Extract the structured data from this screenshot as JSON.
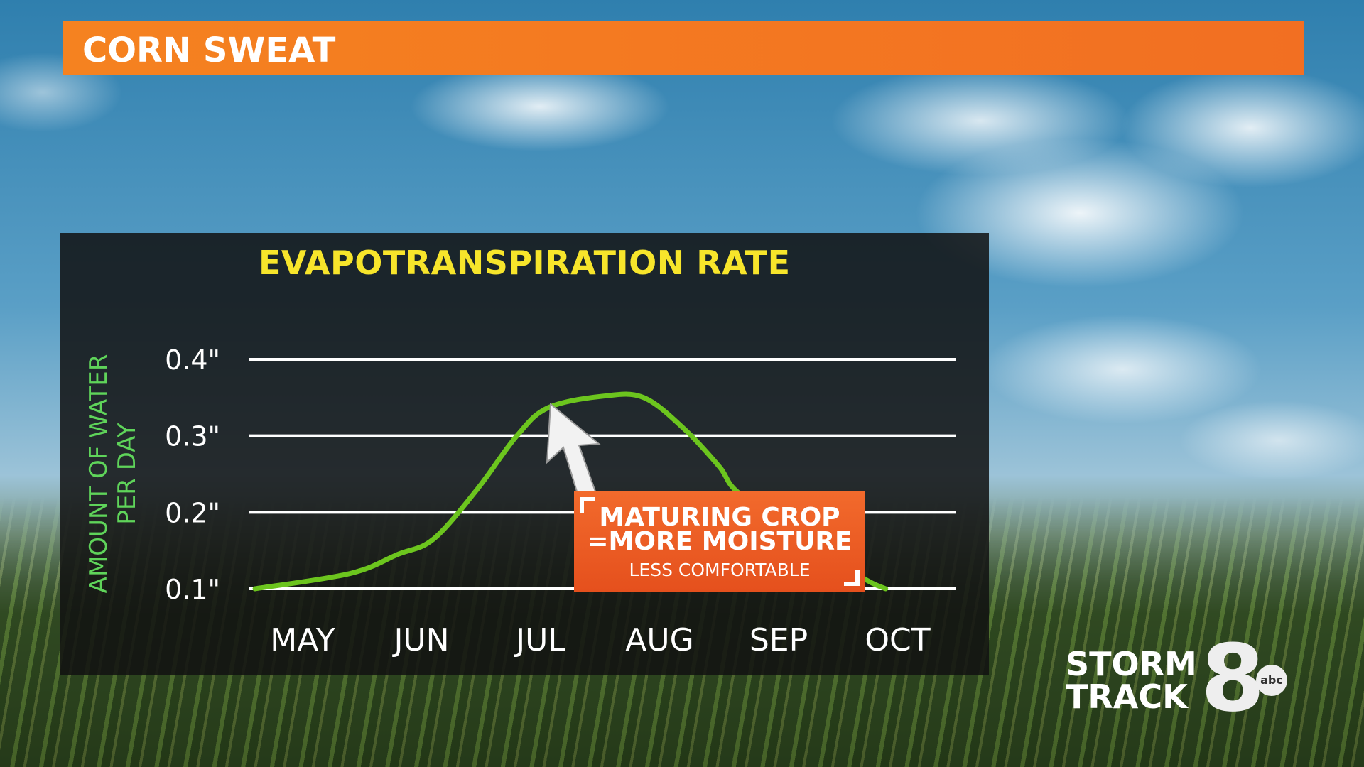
{
  "banner": {
    "title": "CORN SWEAT",
    "color": "#f58220"
  },
  "chart_data": {
    "type": "line",
    "title": "EVAPOTRANSPIRATION RATE",
    "ylabel_line1": "AMOUNT OF WATER",
    "ylabel_line2": "PER DAY",
    "categories": [
      "MAY",
      "JUN",
      "JUL",
      "AUG",
      "SEP",
      "OCT"
    ],
    "yticks": [
      "0.1\"",
      "0.2\"",
      "0.3\"",
      "0.4\""
    ],
    "ytick_values": [
      0.1,
      0.2,
      0.3,
      0.4
    ],
    "ylim": [
      0.1,
      0.4
    ],
    "grid": true,
    "line_color": "#6cc51e",
    "points": [
      {
        "x": "05-03",
        "y": 0.1
      },
      {
        "x": "05-27",
        "y": 0.12
      },
      {
        "x": "06-09",
        "y": 0.145
      },
      {
        "x": "06-18",
        "y": 0.165
      },
      {
        "x": "06-29",
        "y": 0.23
      },
      {
        "x": "07-09",
        "y": 0.3
      },
      {
        "x": "07-17",
        "y": 0.337
      },
      {
        "x": "07-31",
        "y": 0.352
      },
      {
        "x": "08-11",
        "y": 0.35
      },
      {
        "x": "08-21",
        "y": 0.31
      },
      {
        "x": "08-30",
        "y": 0.26
      },
      {
        "x": "09-05",
        "y": 0.225
      },
      {
        "x": "09-21",
        "y": 0.17
      },
      {
        "x": "10-06",
        "y": 0.115
      },
      {
        "x": "10-12",
        "y": 0.1
      }
    ],
    "annotation": {
      "line1": "MATURING CROP",
      "line2": "=MORE MOISTURE",
      "line3": "LESS COMFORTABLE",
      "color": "#ec5a22"
    }
  },
  "logo": {
    "line1": "STORM",
    "line2": "TRACK",
    "number": "8",
    "network": "abc"
  }
}
